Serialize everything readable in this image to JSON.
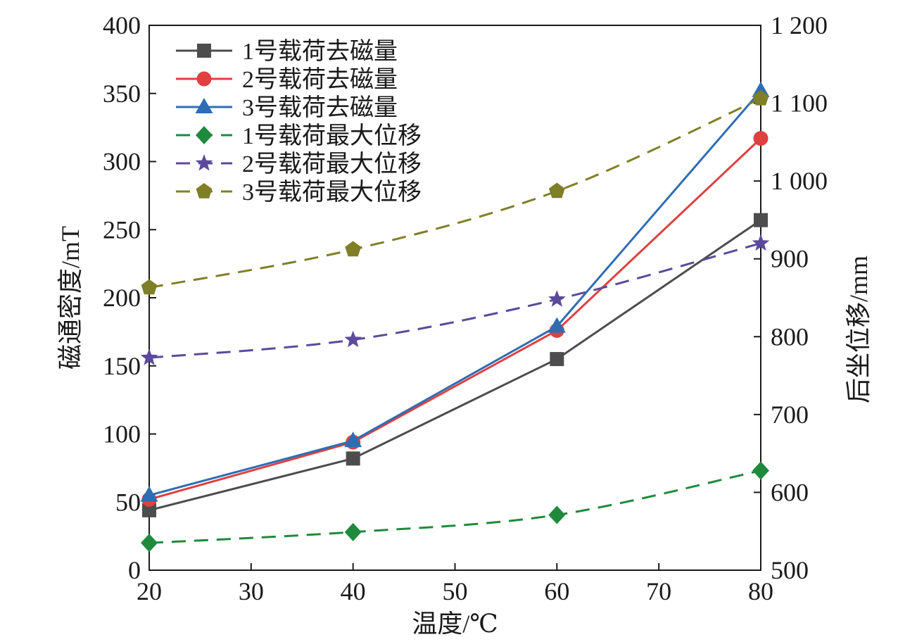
{
  "chart_data": {
    "type": "line",
    "x": [
      20,
      40,
      60,
      80
    ],
    "xlabel": "温度/℃",
    "xlim": [
      20,
      80
    ],
    "xticks": [
      "20",
      "30",
      "40",
      "50",
      "60",
      "70",
      "80"
    ],
    "ylabel": "磁通密度/mT",
    "ylim": [
      0,
      400
    ],
    "yticks": [
      "0",
      "50",
      "100",
      "150",
      "200",
      "250",
      "300",
      "350",
      "400"
    ],
    "y2label": "后坐位移/mm",
    "y2lim": [
      500,
      1200
    ],
    "y2ticks": [
      "500",
      "600",
      "700",
      "800",
      "900",
      "1 000",
      "1 100",
      "1 200"
    ],
    "grid": false,
    "legend_position": "top-left",
    "series": [
      {
        "name": "1号载荷去磁量",
        "axis": "left",
        "values": [
          44,
          82,
          155,
          257
        ],
        "color": "#4d4d4d",
        "marker": "square",
        "dash": "solid"
      },
      {
        "name": "2号载荷去磁量",
        "axis": "left",
        "values": [
          52,
          94,
          176,
          317
        ],
        "color": "#e04040",
        "marker": "circle",
        "dash": "solid"
      },
      {
        "name": "3号载荷去磁量",
        "axis": "left",
        "values": [
          55,
          95,
          179,
          352
        ],
        "color": "#2e6db4",
        "marker": "triangle",
        "dash": "solid"
      },
      {
        "name": "1号载荷最大位移",
        "axis": "right",
        "values": [
          535,
          549,
          571,
          628
        ],
        "color": "#1f8a3c",
        "marker": "diamond",
        "dash": "dashed"
      },
      {
        "name": "2号载荷最大位移",
        "axis": "right",
        "values": [
          773,
          796,
          848,
          920
        ],
        "color": "#5b4a9c",
        "marker": "star",
        "dash": "dashed"
      },
      {
        "name": "3号载荷最大位移",
        "axis": "right",
        "values": [
          863,
          912,
          987,
          1106
        ],
        "color": "#7f7f28",
        "marker": "pentagon",
        "dash": "dashed"
      }
    ]
  }
}
